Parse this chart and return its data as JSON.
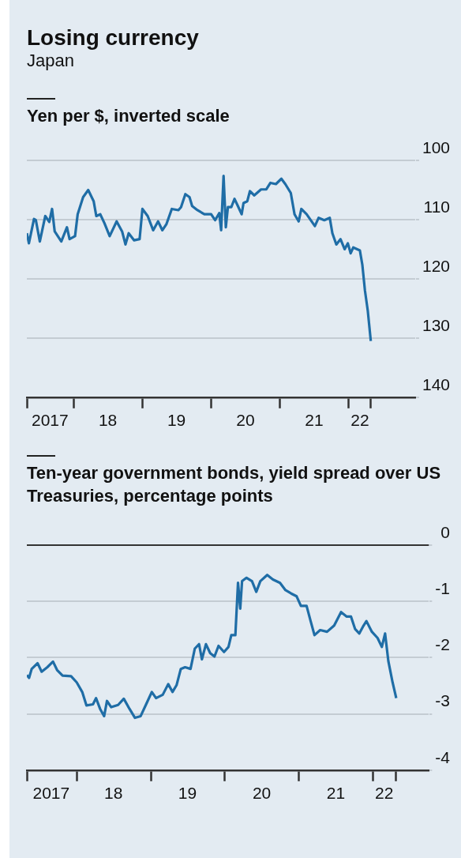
{
  "chart_data": [
    {
      "type": "line",
      "title": "Losing currency",
      "subtitle": "Japan",
      "ylabel": "Yen per $, inverted scale",
      "x": [
        "2017-04-27",
        "2017-05-08",
        "2017-06-04",
        "2017-06-14",
        "2017-07-05",
        "2017-08-03",
        "2017-08-24",
        "2017-09-08",
        "2017-09-22",
        "2017-10-27",
        "2017-11-26",
        "2017-12-10",
        "2018-01-08",
        "2018-01-22",
        "2018-02-20",
        "2018-03-19",
        "2018-04-17",
        "2018-05-01",
        "2018-05-22",
        "2018-06-13",
        "2018-07-11",
        "2018-08-17",
        "2018-09-15",
        "2018-10-03",
        "2018-10-20",
        "2018-11-18",
        "2018-12-17",
        "2019-01-01",
        "2019-01-29",
        "2019-02-27",
        "2019-03-25",
        "2019-04-17",
        "2019-05-08",
        "2019-06-06",
        "2019-07-11",
        "2019-07-25",
        "2019-08-17",
        "2019-09-08",
        "2019-09-22",
        "2019-10-20",
        "2019-11-26",
        "2020-01-01",
        "2020-01-22",
        "2020-02-13",
        "2020-02-23",
        "2020-03-07",
        "2020-03-19",
        "2020-03-30",
        "2020-04-17",
        "2020-05-04",
        "2020-05-22",
        "2020-06-11",
        "2020-06-21",
        "2020-07-11",
        "2020-07-25",
        "2020-08-17",
        "2020-09-22",
        "2020-10-20",
        "2020-11-11",
        "2020-12-10",
        "2021-01-08",
        "2021-01-29",
        "2021-02-27",
        "2021-03-19",
        "2021-04-10",
        "2021-04-24",
        "2021-05-22",
        "2021-07-05",
        "2021-07-25",
        "2021-08-24",
        "2021-09-22",
        "2021-10-06",
        "2021-10-27",
        "2021-11-18",
        "2021-12-10",
        "2021-12-27",
        "2022-01-11",
        "2022-01-25",
        "2022-03-01",
        "2022-03-14",
        "2022-03-28",
        "2022-04-12",
        "2022-04-28"
      ],
      "series": [
        {
          "color": "#1f6da6",
          "values": [
            112.3,
            114,
            109.9,
            110.1,
            113.7,
            109.4,
            110.4,
            108.2,
            112,
            113.7,
            111.3,
            113.3,
            112.8,
            109.1,
            106.2,
            105,
            106.9,
            109.4,
            109.1,
            110.6,
            112.8,
            110.3,
            112,
            114.2,
            112.3,
            113.5,
            113.3,
            108.2,
            109.4,
            111.8,
            110.3,
            111.8,
            110.8,
            108.2,
            108.4,
            107.9,
            105.7,
            106.2,
            107.7,
            108.4,
            109.1,
            109.1,
            110.1,
            108.9,
            111.8,
            102.6,
            111.3,
            107.9,
            107.9,
            106.5,
            107.7,
            109.1,
            107.2,
            106.9,
            105.2,
            105.9,
            104.9,
            104.9,
            103.8,
            104,
            103.1,
            104,
            105.5,
            109.1,
            110.3,
            108.2,
            109.1,
            111.1,
            109.7,
            110.1,
            109.7,
            112.3,
            114.2,
            113.3,
            115,
            114,
            115.7,
            114.7,
            115.2,
            117.6,
            122,
            125.4,
            130.5
          ]
        }
      ],
      "xlim": [
        "2017-04-27",
        "2022-12-24"
      ],
      "xticks": [
        {
          "value": "2017-04-27",
          "label": null
        },
        {
          "value": "2017-08-28",
          "label": "2017"
        },
        {
          "value": "2018-01-01",
          "label": null
        },
        {
          "value": "2018-07-01",
          "label": "18"
        },
        {
          "value": "2019-01-01",
          "label": null
        },
        {
          "value": "2019-07-01",
          "label": "19"
        },
        {
          "value": "2020-01-01",
          "label": null
        },
        {
          "value": "2020-07-01",
          "label": "20"
        },
        {
          "value": "2021-01-01",
          "label": null
        },
        {
          "value": "2021-07-01",
          "label": "21"
        },
        {
          "value": "2022-01-01",
          "label": null
        },
        {
          "value": "2022-03-01",
          "label": "22"
        },
        {
          "value": "2022-04-28",
          "label": null
        }
      ],
      "ylim": [
        140,
        100
      ],
      "yticks": [
        100,
        110,
        120,
        130,
        140
      ],
      "grid": "y"
    },
    {
      "type": "line",
      "ylabel": "Ten-year government bonds, yield spread over US Treasuries, percentage points",
      "x": [
        "2017-04-30",
        "2017-05-11",
        "2017-05-24",
        "2017-06-22",
        "2017-07-12",
        "2017-08-09",
        "2017-09-06",
        "2017-09-26",
        "2017-10-23",
        "2017-12-04",
        "2018-01-01",
        "2018-01-28",
        "2018-02-18",
        "2018-03-22",
        "2018-04-06",
        "2018-04-26",
        "2018-05-16",
        "2018-05-30",
        "2018-06-20",
        "2018-07-24",
        "2018-08-21",
        "2018-09-18",
        "2018-10-15",
        "2018-11-12",
        "2018-12-09",
        "2019-01-06",
        "2019-01-27",
        "2019-03-01",
        "2019-03-28",
        "2019-04-18",
        "2019-05-08",
        "2019-05-29",
        "2019-06-19",
        "2019-07-16",
        "2019-08-06",
        "2019-08-27",
        "2019-09-10",
        "2019-09-30",
        "2019-10-21",
        "2019-11-11",
        "2019-12-01",
        "2019-12-28",
        "2020-01-19",
        "2020-02-02",
        "2020-02-22",
        "2020-03-06",
        "2020-03-17",
        "2020-03-26",
        "2020-04-17",
        "2020-05-14",
        "2020-06-04",
        "2020-06-24",
        "2020-07-28",
        "2020-08-25",
        "2020-09-29",
        "2020-10-26",
        "2020-11-23",
        "2020-12-20",
        "2021-01-10",
        "2021-02-07",
        "2021-02-27",
        "2021-03-18",
        "2021-04-15",
        "2021-05-19",
        "2021-06-23",
        "2021-07-27",
        "2021-08-24",
        "2021-09-14",
        "2021-10-04",
        "2021-10-25",
        "2021-11-15",
        "2021-11-29",
        "2021-12-26",
        "2022-01-23",
        "2022-02-13",
        "2022-03-01",
        "2022-03-17",
        "2022-04-07",
        "2022-04-25"
      ],
      "series": [
        {
          "color": "#1f6da6",
          "values": [
            -2.31,
            -2.36,
            -2.2,
            -2.1,
            -2.25,
            -2.17,
            -2.07,
            -2.22,
            -2.32,
            -2.33,
            -2.44,
            -2.61,
            -2.85,
            -2.83,
            -2.72,
            -2.91,
            -3.04,
            -2.77,
            -2.88,
            -2.84,
            -2.73,
            -2.91,
            -3.07,
            -3.04,
            -2.83,
            -2.61,
            -2.72,
            -2.66,
            -2.47,
            -2.61,
            -2.49,
            -2.2,
            -2.17,
            -2.2,
            -1.84,
            -1.76,
            -2.03,
            -1.76,
            -1.92,
            -1.98,
            -1.79,
            -1.9,
            -1.81,
            -1.6,
            -1.6,
            -0.67,
            -1.13,
            -0.64,
            -0.58,
            -0.64,
            -0.83,
            -0.64,
            -0.53,
            -0.61,
            -0.67,
            -0.8,
            -0.86,
            -0.91,
            -1.08,
            -1.08,
            -1.35,
            -1.6,
            -1.51,
            -1.54,
            -1.43,
            -1.19,
            -1.27,
            -1.27,
            -1.49,
            -1.57,
            -1.43,
            -1.35,
            -1.54,
            -1.65,
            -1.81,
            -1.57,
            -2.06,
            -2.44,
            -2.72
          ]
        }
      ],
      "xlim": [
        "2017-04-30",
        "2022-10-03"
      ],
      "xticks": [
        {
          "value": "2017-04-30",
          "label": null
        },
        {
          "value": "2017-08-28",
          "label": "2017"
        },
        {
          "value": "2018-01-01",
          "label": null
        },
        {
          "value": "2018-07-01",
          "label": "18"
        },
        {
          "value": "2019-01-01",
          "label": null
        },
        {
          "value": "2019-07-01",
          "label": "19"
        },
        {
          "value": "2020-01-01",
          "label": null
        },
        {
          "value": "2020-07-01",
          "label": "20"
        },
        {
          "value": "2021-01-01",
          "label": null
        },
        {
          "value": "2021-07-01",
          "label": "21"
        },
        {
          "value": "2022-01-01",
          "label": null
        },
        {
          "value": "2022-02-25",
          "label": "22"
        },
        {
          "value": "2022-04-25",
          "label": null
        }
      ],
      "ylim": [
        -4,
        0
      ],
      "yticks": [
        0,
        -1,
        -2,
        -3,
        -4
      ],
      "grid": "y",
      "ref_lines": [
        {
          "axis": "y",
          "value": 0,
          "color": "#333333"
        }
      ]
    }
  ]
}
